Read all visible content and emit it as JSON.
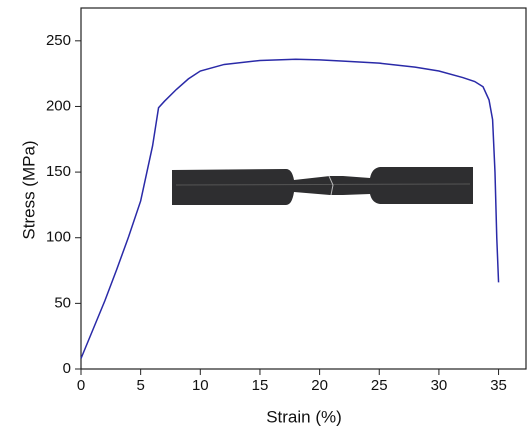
{
  "chart_data": {
    "type": "line",
    "x_label": "Strain (%)",
    "y_label": "Stress (MPa)",
    "xlim": [
      0,
      37.3
    ],
    "ylim": [
      0,
      275
    ],
    "xticks": [
      0,
      5,
      10,
      15,
      20,
      25,
      30,
      35
    ],
    "yticks": [
      0,
      50,
      100,
      150,
      200,
      250
    ],
    "grid": false,
    "series": [
      {
        "color": "#2a2aa8",
        "x": [
          0,
          1,
          2,
          3,
          4,
          5,
          6,
          6.5,
          7,
          8,
          9,
          10,
          12,
          15,
          18,
          20,
          22,
          25,
          28,
          30,
          32,
          33,
          33.7,
          34.2,
          34.5,
          34.7,
          34.85,
          35
        ],
        "values": [
          8,
          30,
          52,
          76,
          101,
          128,
          170,
          199,
          204,
          213,
          221,
          227,
          232,
          235,
          236,
          235.5,
          234.5,
          233,
          230,
          227,
          222,
          219,
          215,
          205,
          190,
          150,
          100,
          66
        ]
      }
    ]
  }
}
